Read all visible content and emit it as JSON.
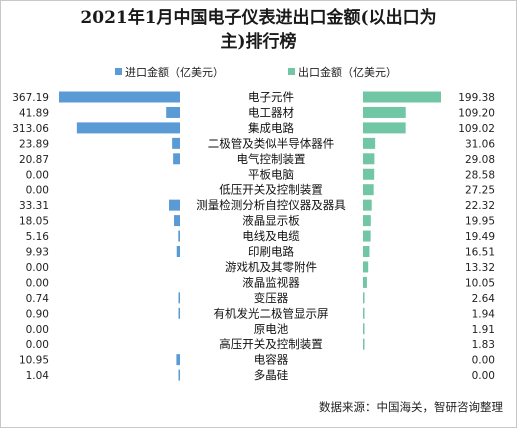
{
  "title": {
    "line1": "2021年1月中国电子仪表进出口金额(以出口为",
    "line2": "主)排行榜"
  },
  "source": "数据来源：中国海关，智研咨询整理",
  "colors": {
    "import": "#5b9bd5",
    "export": "#70c6a5"
  },
  "chart_data": {
    "type": "bar",
    "title": "2021年1月中国电子仪表进出口金额(以出口为主)排行榜",
    "categories": [
      "电子元件",
      "电工器材",
      "集成电路",
      "二极管及类似半导体器件",
      "电气控制装置",
      "平板电脑",
      "低压开关及控制装置",
      "测量检测分析自控仪器及器具",
      "液晶显示板",
      "电线及电缆",
      "印刷电路",
      "游戏机及其零附件",
      "液晶监视器",
      "变压器",
      "有机发光二极管显示屏",
      "原电池",
      "高压开关及控制装置",
      "电容器",
      "多晶硅"
    ],
    "series": [
      {
        "name": "进口金额（亿美元）",
        "labels": [
          "367.19",
          "41.89",
          "313.06",
          "23.89",
          "20.87",
          "0.00",
          "0.00",
          "33.31",
          "18.05",
          "5.16",
          "9.93",
          "0.00",
          "0.00",
          "0.74",
          "0.90",
          "0.00",
          "0.00",
          "10.95",
          "1.04"
        ],
        "values": [
          367.19,
          41.89,
          313.06,
          23.89,
          20.87,
          0,
          0,
          33.31,
          18.05,
          5.16,
          9.93,
          0,
          0,
          0.74,
          0.9,
          0,
          0,
          10.95,
          1.04
        ]
      },
      {
        "name": "出口金额（亿美元）",
        "labels": [
          "199.38",
          "109.20",
          "109.02",
          "31.06",
          "29.08",
          "28.58",
          "27.25",
          "22.32",
          "19.95",
          "19.49",
          "16.51",
          "13.32",
          "10.05",
          "2.64",
          "1.94",
          "1.91",
          "1.83",
          "0.00",
          "0.00"
        ],
        "values": [
          199.38,
          109.2,
          109.02,
          31.06,
          29.08,
          28.58,
          27.25,
          22.32,
          19.95,
          19.49,
          16.51,
          13.32,
          10.05,
          2.64,
          1.94,
          1.91,
          1.83,
          0,
          0
        ]
      }
    ],
    "legend": "top-center",
    "grid": false
  }
}
